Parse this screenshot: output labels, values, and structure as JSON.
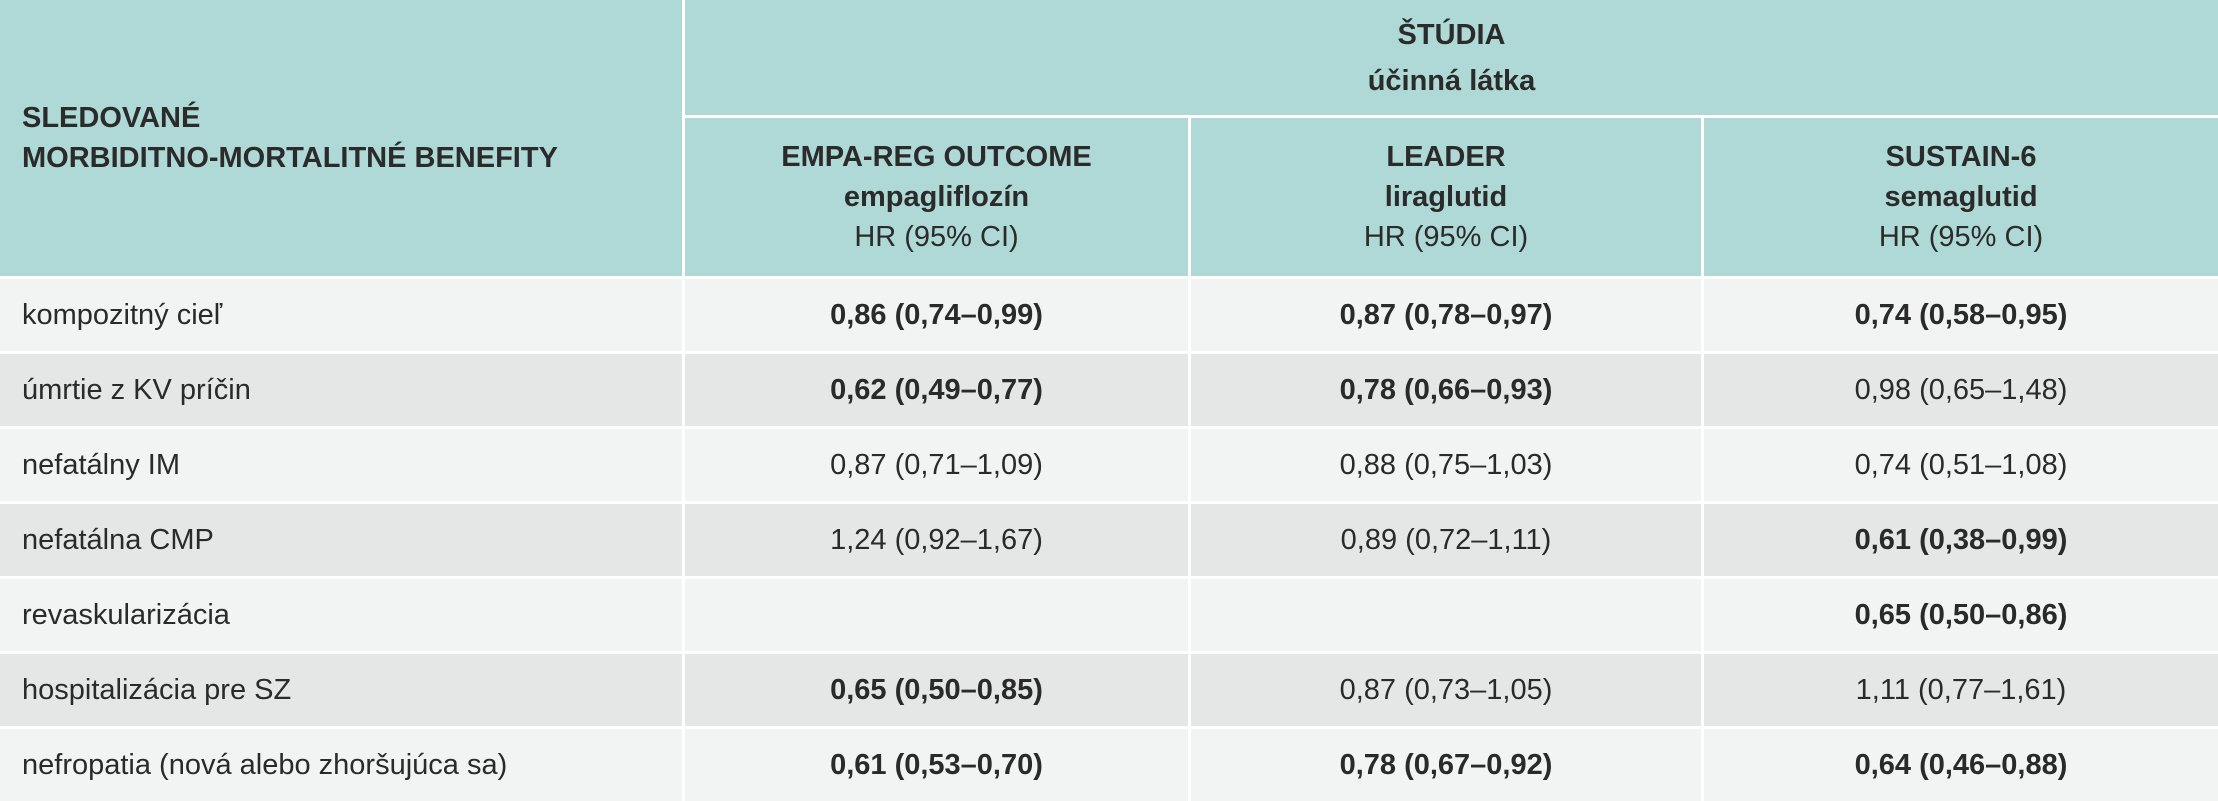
{
  "header": {
    "row_label_line1": "SLEDOVANÉ",
    "row_label_line2": "MORBIDITNO-MORTALITNÉ BENEFITY",
    "group_line1": "ŠTÚDIA",
    "group_line2": "účinná látka",
    "studies": [
      {
        "name": "EMPA-REG OUTCOME",
        "drug": "empagliflozín",
        "metric": "HR (95% CI)"
      },
      {
        "name": "LEADER",
        "drug": "liraglutid",
        "metric": "HR (95% CI)"
      },
      {
        "name": "SUSTAIN-6",
        "drug": "semaglutid",
        "metric": "HR (95% CI)"
      }
    ]
  },
  "rows": [
    {
      "label": "kompozitný cieľ",
      "cells": [
        {
          "text": "0,86 (0,74–0,99)",
          "bold": true
        },
        {
          "text": "0,87 (0,78–0,97)",
          "bold": true
        },
        {
          "text": "0,74 (0,58–0,95)",
          "bold": true
        }
      ]
    },
    {
      "label": "úmrtie z KV príčin",
      "cells": [
        {
          "text": "0,62 (0,49–0,77)",
          "bold": true
        },
        {
          "text": "0,78 (0,66–0,93)",
          "bold": true
        },
        {
          "text": "0,98 (0,65–1,48)",
          "bold": false
        }
      ]
    },
    {
      "label": "nefatálny IM",
      "cells": [
        {
          "text": "0,87 (0,71–1,09)",
          "bold": false
        },
        {
          "text": "0,88 (0,75–1,03)",
          "bold": false
        },
        {
          "text": "0,74 (0,51–1,08)",
          "bold": false
        }
      ]
    },
    {
      "label": "nefatálna CMP",
      "cells": [
        {
          "text": "1,24 (0,92–1,67)",
          "bold": false
        },
        {
          "text": "0,89 (0,72–1,11)",
          "bold": false
        },
        {
          "text": "0,61 (0,38–0,99)",
          "bold": true
        }
      ]
    },
    {
      "label": "revaskularizácia",
      "cells": [
        {
          "text": "",
          "bold": false
        },
        {
          "text": "",
          "bold": false
        },
        {
          "text": "0,65 (0,50–0,86)",
          "bold": true
        }
      ]
    },
    {
      "label": "hospitalizácia pre SZ",
      "cells": [
        {
          "text": "0,65 (0,50–0,85)",
          "bold": true
        },
        {
          "text": "0,87 (0,73–1,05)",
          "bold": false
        },
        {
          "text": "1,11 (0,77–1,61)",
          "bold": false
        }
      ]
    },
    {
      "label": "nefropatia (nová alebo zhoršujúca sa)",
      "cells": [
        {
          "text": "0,61 (0,53–0,70)",
          "bold": true
        },
        {
          "text": "0,78 (0,67–0,92)",
          "bold": true
        },
        {
          "text": "0,64 (0,46–0,88)",
          "bold": true
        }
      ]
    }
  ]
}
